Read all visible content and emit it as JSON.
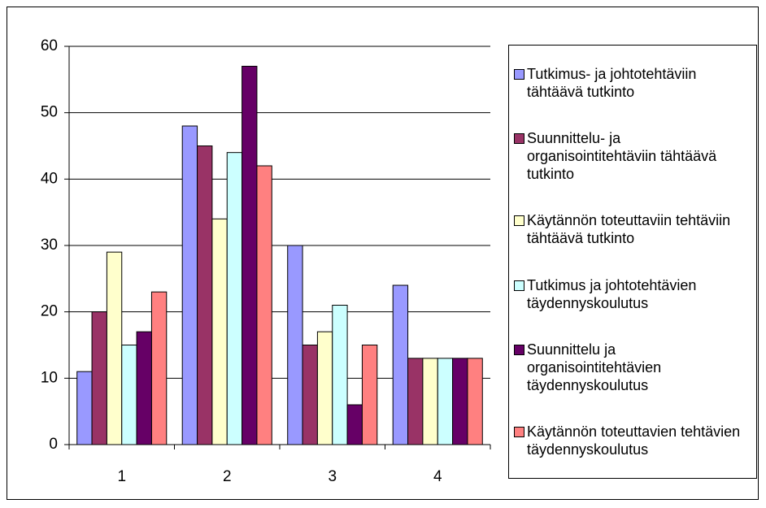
{
  "chart_data": {
    "type": "bar",
    "categories": [
      "1",
      "2",
      "3",
      "4"
    ],
    "series": [
      {
        "name": "Tutkimus- ja johtotehtäviin tähtäävä tutkinto",
        "color": "#9999ff",
        "values": [
          11,
          48,
          30,
          24
        ]
      },
      {
        "name": "Suunnittelu- ja organisointitehtäviin tähtäävä tutkinto",
        "color": "#993366",
        "values": [
          20,
          45,
          15,
          13
        ]
      },
      {
        "name": "Käytännön toteuttaviin tehtäviin tähtäävä tutkinto",
        "color": "#ffffcc",
        "values": [
          29,
          34,
          17,
          13
        ]
      },
      {
        "name": "Tutkimus ja johtotehtävien täydennyskoulutus",
        "color": "#ccffff",
        "values": [
          15,
          44,
          21,
          13
        ]
      },
      {
        "name": "Suunnittelu ja organisointitehtävien täydennyskoulutus",
        "color": "#660066",
        "values": [
          17,
          57,
          6,
          13
        ]
      },
      {
        "name": "Käytännön toteuttavien tehtävien täydennyskoulutus",
        "color": "#ff8080",
        "values": [
          23,
          42,
          15,
          13
        ]
      }
    ],
    "ylim": [
      0,
      60
    ],
    "yticks": [
      0,
      10,
      20,
      30,
      40,
      50,
      60
    ],
    "grid": true,
    "legend": "right"
  }
}
